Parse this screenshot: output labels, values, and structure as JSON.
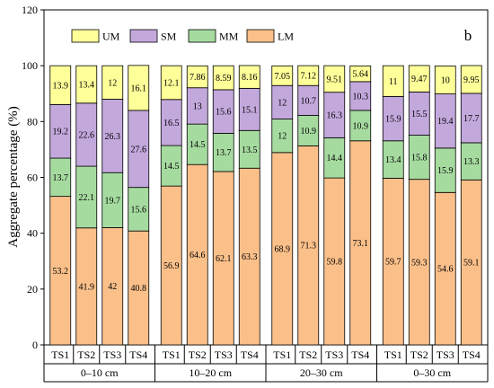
{
  "chart_data": {
    "type": "bar",
    "stacked": true,
    "panel_letter": "b",
    "ylabel": "Aggregate percentage (%)",
    "ylim": [
      0,
      120
    ],
    "yticks": [
      0,
      20,
      40,
      60,
      80,
      100,
      120
    ],
    "legend": {
      "placement": "top-left",
      "entries": [
        {
          "name": "UM",
          "color": "#ffff99"
        },
        {
          "name": "SM",
          "color": "#c3a8dc"
        },
        {
          "name": "MM",
          "color": "#a6dba0"
        },
        {
          "name": "LM",
          "color": "#fbc08a"
        }
      ]
    },
    "stack_order": [
      "LM",
      "MM",
      "SM",
      "UM"
    ],
    "groups": [
      {
        "label": "0–10 cm",
        "bars": [
          {
            "name": "TS1",
            "LM": 53.2,
            "MM": 13.7,
            "SM": 19.2,
            "UM": 13.9
          },
          {
            "name": "TS2",
            "LM": 41.9,
            "MM": 22.1,
            "SM": 22.6,
            "UM": 13.4
          },
          {
            "name": "TS3",
            "LM": 42,
            "MM": 19.7,
            "SM": 26.3,
            "UM": 12
          },
          {
            "name": "TS4",
            "LM": 40.8,
            "MM": 15.6,
            "SM": 27.6,
            "UM": 16.1
          }
        ]
      },
      {
        "label": "10–20 cm",
        "bars": [
          {
            "name": "TS1",
            "LM": 56.9,
            "MM": 14.5,
            "SM": 16.5,
            "UM": 12.1
          },
          {
            "name": "TS2",
            "LM": 64.6,
            "MM": 14.5,
            "SM": 13,
            "UM": 7.86
          },
          {
            "name": "TS3",
            "LM": 62.1,
            "MM": 13.7,
            "SM": 15.6,
            "UM": 8.59
          },
          {
            "name": "TS4",
            "LM": 63.3,
            "MM": 13.5,
            "SM": 15.1,
            "UM": 8.16
          }
        ]
      },
      {
        "label": "20–30 cm",
        "bars": [
          {
            "name": "TS1",
            "LM": 68.9,
            "MM": 12,
            "SM": 12,
            "UM": 7.05
          },
          {
            "name": "TS2",
            "LM": 71.3,
            "MM": 10.9,
            "SM": 10.7,
            "UM": 7.12
          },
          {
            "name": "TS3",
            "LM": 59.8,
            "MM": 14.4,
            "SM": 16.3,
            "UM": 9.51
          },
          {
            "name": "TS4",
            "LM": 73.1,
            "MM": 10.9,
            "SM": 10.3,
            "UM": 5.64
          }
        ]
      },
      {
        "label": "0–30 cm",
        "bars": [
          {
            "name": "TS1",
            "LM": 59.7,
            "MM": 13.4,
            "SM": 15.9,
            "UM": 11
          },
          {
            "name": "TS2",
            "LM": 59.3,
            "MM": 15.8,
            "SM": 15.5,
            "UM": 9.47
          },
          {
            "name": "TS3",
            "LM": 54.6,
            "MM": 15.9,
            "SM": 19.4,
            "UM": 10
          },
          {
            "name": "TS4",
            "LM": 59.1,
            "MM": 13.3,
            "SM": 17.7,
            "UM": 9.95
          }
        ]
      }
    ]
  }
}
